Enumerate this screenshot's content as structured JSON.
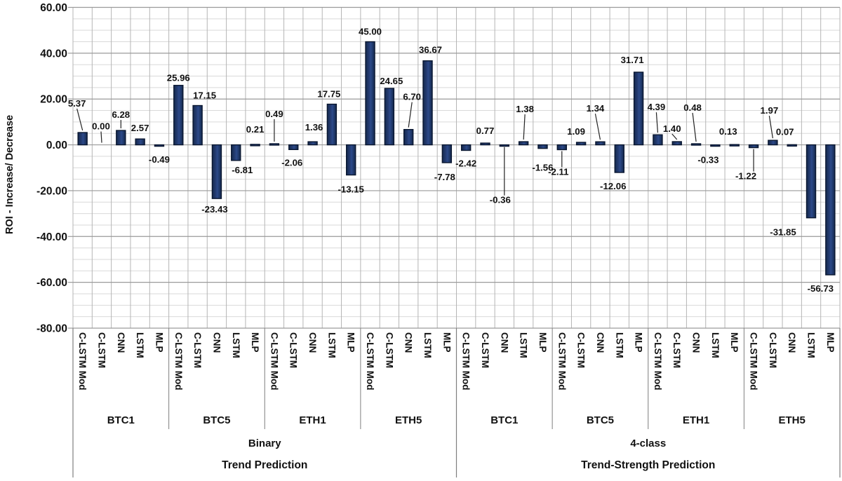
{
  "chart_data": {
    "type": "bar",
    "title": "",
    "ylabel": "ROI - Increase/ Decrease",
    "ylim": [
      -80,
      60
    ],
    "ytick_step_major": 20,
    "ytick_step_minor": 5,
    "y_ticks": [
      "60.00",
      "40.00",
      "20.00",
      "0.00",
      "-20.00",
      "-40.00",
      "-60.00",
      "-80.00"
    ],
    "grid": "on",
    "legend": "none",
    "bar_color": "#1d3566",
    "bar_border": "#0a1730",
    "gridline_major_color": "#9a9a9a",
    "gridline_minor_color": "#d9d9d9",
    "gridline_vertical_color": "#b5b5b5",
    "separator_color": "#7f7f7f",
    "label_color": "#111111",
    "value_format": "0.00",
    "models": [
      "C-LSTM Mod",
      "C-LSTM",
      "CNN",
      "LSTM",
      "MLP"
    ],
    "groups": [
      {
        "label": "Binary",
        "sublabel": "Trend Prediction",
        "datasets": [
          {
            "label": "BTC1",
            "values": [
              5.37,
              0.0,
              6.28,
              2.57,
              -0.49
            ]
          },
          {
            "label": "BTC5",
            "values": [
              25.96,
              17.15,
              -23.43,
              -6.81,
              0.21
            ]
          },
          {
            "label": "ETH1",
            "values": [
              0.49,
              -2.06,
              1.36,
              17.75,
              -13.15
            ]
          },
          {
            "label": "ETH5",
            "values": [
              45.0,
              24.65,
              6.7,
              36.67,
              -7.78
            ]
          }
        ]
      },
      {
        "label": "4-class",
        "sublabel": "Trend-Strength Prediction",
        "datasets": [
          {
            "label": "BTC1",
            "values": [
              -2.42,
              0.77,
              -0.36,
              1.38,
              -1.56
            ]
          },
          {
            "label": "BTC5",
            "values": [
              -2.11,
              1.09,
              1.34,
              -12.06,
              31.71
            ]
          },
          {
            "label": "ETH1",
            "values": [
              4.39,
              1.4,
              0.48,
              -0.33,
              0.13
            ]
          },
          {
            "label": "ETH5",
            "values": [
              -1.22,
              1.97,
              0.07,
              -31.85,
              -56.73
            ]
          }
        ]
      }
    ]
  }
}
